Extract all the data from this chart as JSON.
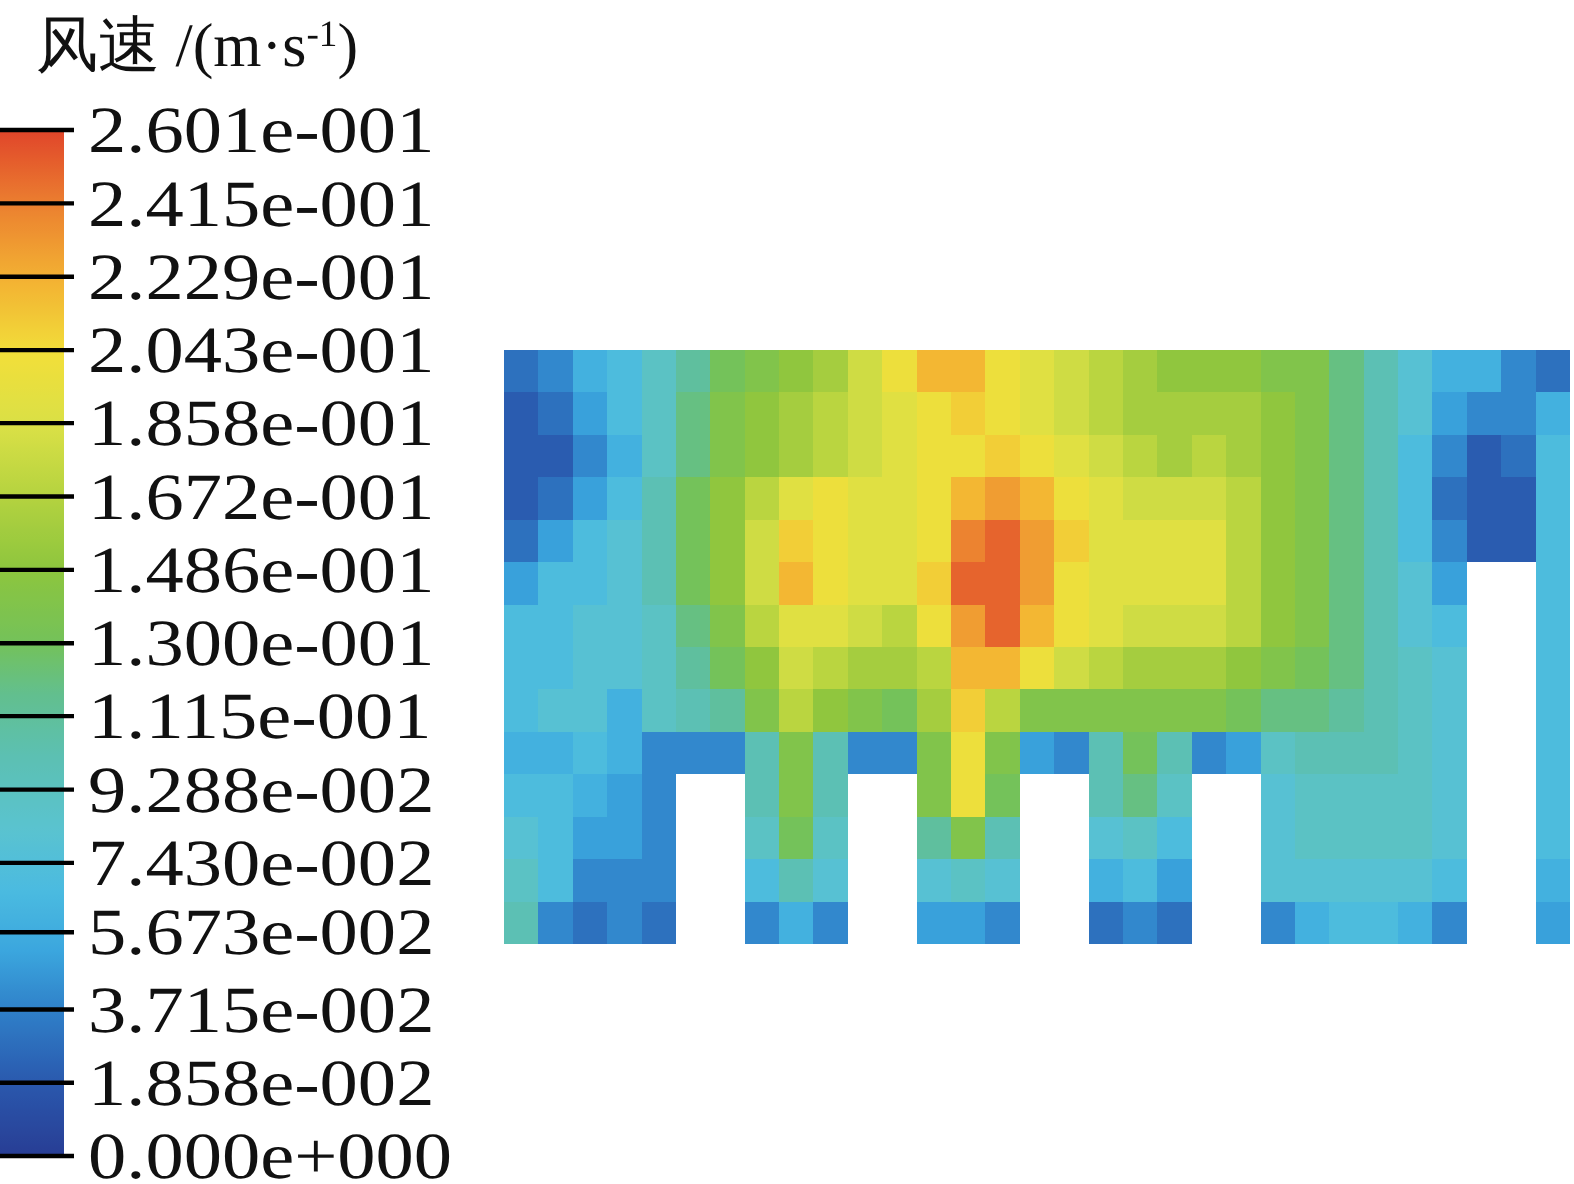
{
  "chart_data": {
    "type": "heatmap",
    "clabel": "风速 /(m·s$^{-1}$)",
    "categories": [
      null,
      null,
      null,
      null,
      null,
      null,
      null,
      null,
      null,
      null,
      null,
      null,
      null,
      null,
      null,
      null,
      null,
      null,
      null,
      null,
      null,
      null,
      null,
      null,
      null,
      null,
      null,
      null,
      null,
      null,
      null
    ],
    "y_categories": [
      null,
      null,
      null,
      null,
      null,
      null,
      null,
      null,
      null,
      null,
      null,
      null,
      null,
      null
    ],
    "cells": [
      [
        0.03,
        0.04,
        0.06,
        0.07,
        0.09,
        0.11,
        0.13,
        0.14,
        0.15,
        0.16,
        0.18,
        0.2,
        0.22,
        0.22,
        0.2,
        0.19,
        0.18,
        0.17,
        0.16,
        0.15,
        0.15,
        0.15,
        0.14,
        0.14,
        0.12,
        0.1,
        0.08,
        0.06,
        0.06,
        0.04,
        0.03
      ],
      [
        0.02,
        0.03,
        0.05,
        0.07,
        0.09,
        0.12,
        0.14,
        0.15,
        0.16,
        0.17,
        0.18,
        0.19,
        0.2,
        0.21,
        0.2,
        0.19,
        0.18,
        0.17,
        0.16,
        0.16,
        0.16,
        0.16,
        0.15,
        0.14,
        0.12,
        0.1,
        0.08,
        0.05,
        0.04,
        0.04,
        0.06
      ],
      [
        0.02,
        0.02,
        0.04,
        0.06,
        0.09,
        0.12,
        0.14,
        0.15,
        0.16,
        0.17,
        0.18,
        0.19,
        0.2,
        0.2,
        0.21,
        0.2,
        0.19,
        0.18,
        0.17,
        0.16,
        0.17,
        0.16,
        0.15,
        0.14,
        0.12,
        0.1,
        0.07,
        0.04,
        0.02,
        0.03,
        0.07
      ],
      [
        0.02,
        0.03,
        0.05,
        0.07,
        0.1,
        0.13,
        0.15,
        0.17,
        0.19,
        0.2,
        0.19,
        0.19,
        0.2,
        0.22,
        0.23,
        0.22,
        0.2,
        0.19,
        0.18,
        0.18,
        0.18,
        0.17,
        0.15,
        0.14,
        0.12,
        0.1,
        0.07,
        0.03,
        0.02,
        0.02,
        0.07
      ],
      [
        0.03,
        0.05,
        0.07,
        0.08,
        0.1,
        0.13,
        0.15,
        0.18,
        0.21,
        0.2,
        0.19,
        0.19,
        0.2,
        0.24,
        0.25,
        0.23,
        0.21,
        0.19,
        0.19,
        0.19,
        0.19,
        0.17,
        0.15,
        0.14,
        0.12,
        0.1,
        0.07,
        0.04,
        0.02,
        0.02,
        0.07
      ],
      [
        0.05,
        0.07,
        0.07,
        0.08,
        0.1,
        0.13,
        0.15,
        0.18,
        0.22,
        0.2,
        0.19,
        0.19,
        0.21,
        0.25,
        0.25,
        0.23,
        0.2,
        0.19,
        0.19,
        0.19,
        0.19,
        0.17,
        0.15,
        0.14,
        0.12,
        0.1,
        0.08,
        0.05,
        null,
        null,
        0.07
      ],
      [
        0.07,
        0.07,
        0.08,
        0.08,
        0.09,
        0.12,
        0.14,
        0.17,
        0.19,
        0.19,
        0.18,
        0.17,
        0.2,
        0.23,
        0.25,
        0.22,
        0.2,
        0.19,
        0.18,
        0.18,
        0.18,
        0.17,
        0.15,
        0.14,
        0.12,
        0.1,
        0.08,
        0.07,
        null,
        null,
        0.07
      ],
      [
        0.07,
        0.07,
        0.08,
        0.08,
        0.09,
        0.11,
        0.13,
        0.15,
        0.18,
        0.17,
        0.16,
        0.16,
        0.17,
        0.22,
        0.22,
        0.2,
        0.18,
        0.17,
        0.16,
        0.16,
        0.16,
        0.15,
        0.14,
        0.13,
        0.12,
        0.1,
        0.09,
        0.08,
        null,
        null,
        0.07
      ],
      [
        0.07,
        0.08,
        0.08,
        0.06,
        0.09,
        0.1,
        0.11,
        0.14,
        0.17,
        0.15,
        0.14,
        0.13,
        0.16,
        0.21,
        0.17,
        0.14,
        0.14,
        0.14,
        0.14,
        0.14,
        0.14,
        0.13,
        0.12,
        0.12,
        0.11,
        0.1,
        0.09,
        0.08,
        null,
        null,
        0.07
      ],
      [
        0.06,
        0.06,
        0.07,
        0.06,
        0.04,
        0.04,
        0.04,
        0.1,
        0.14,
        0.1,
        0.04,
        0.04,
        0.14,
        0.2,
        0.14,
        0.05,
        0.04,
        0.1,
        0.13,
        0.1,
        0.04,
        0.05,
        0.09,
        0.1,
        0.1,
        0.1,
        0.09,
        0.08,
        null,
        null,
        0.07
      ],
      [
        0.07,
        0.07,
        0.06,
        0.05,
        0.04,
        null,
        null,
        0.1,
        0.14,
        0.1,
        null,
        null,
        0.14,
        0.2,
        0.13,
        null,
        null,
        0.1,
        0.12,
        0.09,
        null,
        null,
        0.08,
        0.09,
        0.09,
        0.09,
        0.09,
        0.08,
        null,
        null,
        0.07
      ],
      [
        0.08,
        0.07,
        0.05,
        0.05,
        0.04,
        null,
        null,
        0.09,
        0.13,
        0.09,
        null,
        null,
        0.11,
        0.14,
        0.1,
        null,
        null,
        0.08,
        0.09,
        0.07,
        null,
        null,
        0.08,
        0.09,
        0.09,
        0.09,
        0.09,
        0.08,
        null,
        null,
        0.07
      ],
      [
        0.09,
        0.07,
        0.04,
        0.04,
        0.04,
        null,
        null,
        0.07,
        0.1,
        0.08,
        null,
        null,
        0.08,
        0.09,
        0.08,
        null,
        null,
        0.06,
        0.07,
        0.05,
        null,
        null,
        0.08,
        0.08,
        0.08,
        0.08,
        0.08,
        0.07,
        null,
        null,
        0.06
      ],
      [
        0.1,
        0.04,
        0.03,
        0.04,
        0.03,
        null,
        null,
        0.04,
        0.06,
        0.04,
        null,
        null,
        0.05,
        0.05,
        0.04,
        null,
        null,
        0.03,
        0.04,
        0.03,
        null,
        null,
        0.04,
        0.06,
        0.07,
        0.07,
        0.06,
        0.04,
        null,
        null,
        0.05
      ]
    ],
    "clim": [
      0,
      0.2601
    ],
    "cticks": [
      {
        "value": 0,
        "label": "0.000e+000"
      },
      {
        "value": 0.01858,
        "label": "1.858e-002"
      },
      {
        "value": 0.03715,
        "label": "3.715e-002"
      },
      {
        "value": 0.05673,
        "label": "5.673e-002"
      },
      {
        "value": 0.0743,
        "label": "7.430e-002"
      },
      {
        "value": 0.09288,
        "label": "9.288e-002"
      },
      {
        "value": 0.1115,
        "label": "1.115e-001"
      },
      {
        "value": 0.13,
        "label": "1.300e-001"
      },
      {
        "value": 0.1486,
        "label": "1.486e-001"
      },
      {
        "value": 0.1672,
        "label": "1.672e-001"
      },
      {
        "value": 0.1858,
        "label": "1.858e-001"
      },
      {
        "value": 0.2043,
        "label": "2.043e-001"
      },
      {
        "value": 0.2229,
        "label": "2.229e-001"
      },
      {
        "value": 0.2415,
        "label": "2.415e-001"
      },
      {
        "value": 0.2601,
        "label": "2.601e-001"
      }
    ]
  }
}
